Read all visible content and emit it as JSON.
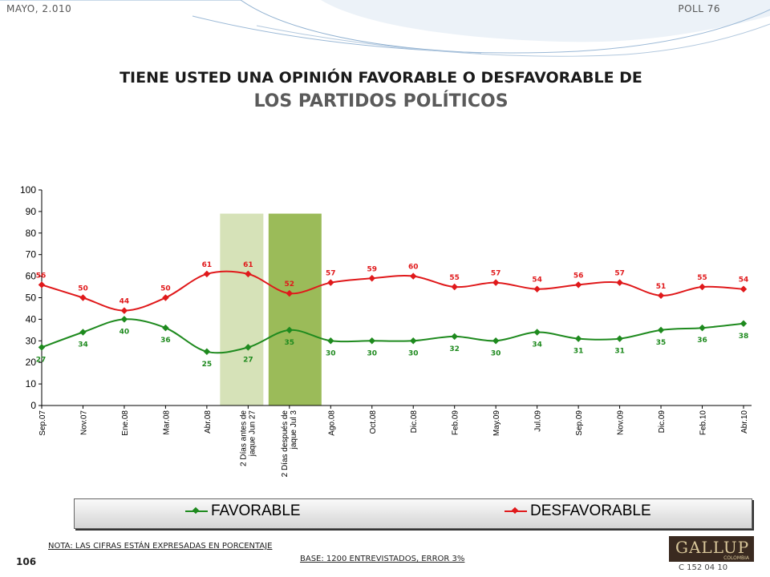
{
  "header": {
    "date": "MAYO, 2.010",
    "poll": "POLL 76"
  },
  "title": {
    "line1": "TIENE USTED UNA OPINIÓN FAVORABLE O DESFAVORABLE DE",
    "line2": "LOS PARTIDOS POLÍTICOS"
  },
  "chart_data": {
    "type": "line",
    "categories": [
      "Sep.07",
      "Nov.07",
      "Ene.08",
      "Mar.08",
      "Abr.08",
      "2 Días antes de jaque Jun 27",
      "2 Días después de jaque Jul 3",
      "Ago.08",
      "Oct.08",
      "Dic.08",
      "Feb.09",
      "May.09",
      "Jul.09",
      "Sep.09",
      "Nov.09",
      "Dic.09",
      "Feb.10",
      "Abr.10"
    ],
    "series": [
      {
        "name": "FAVORABLE",
        "color": "#1e8a1e",
        "values": [
          27,
          34,
          40,
          36,
          25,
          27,
          35,
          30,
          30,
          30,
          32,
          30,
          34,
          31,
          31,
          35,
          36,
          38
        ]
      },
      {
        "name": "DESFAVORABLE",
        "color": "#e0191b",
        "values": [
          56,
          50,
          44,
          50,
          61,
          61,
          52,
          57,
          59,
          60,
          55,
          57,
          54,
          56,
          57,
          51,
          55,
          54
        ]
      }
    ],
    "ylim": [
      0,
      100
    ],
    "yticks": [
      0,
      10,
      20,
      30,
      40,
      50,
      60,
      70,
      80,
      90,
      100
    ],
    "highlight_bands": [
      {
        "category": "2 Días antes de jaque Jun 27",
        "color": "#d6e2b8"
      },
      {
        "category": "2 Días después de jaque Jul 3",
        "color": "#9bbb59"
      }
    ],
    "legend_position": "bottom",
    "grid": false
  },
  "legend": {
    "favorable": "FAVORABLE",
    "desfavorable": "DESFAVORABLE"
  },
  "footer": {
    "note": "NOTA: LAS CIFRAS ESTÁN EXPRESADAS EN PORCENTAJE",
    "base": "BASE: 1200 ENTREVISTADOS, ERROR 3%",
    "page": "106",
    "code": "C 152 04 10",
    "logo": "GALLUP",
    "logo_sub": "COLOMBIA"
  }
}
